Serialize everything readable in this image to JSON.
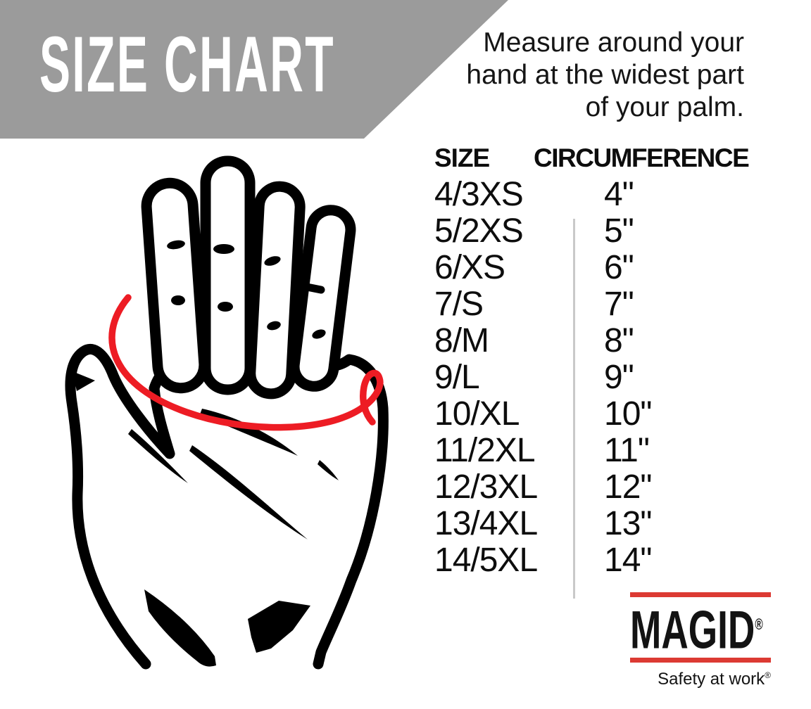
{
  "banner": {
    "title": "SIZE CHART",
    "bg_color": "#9b9b9b",
    "text_color": "#ffffff"
  },
  "instruction": {
    "lines": [
      "Measure around your",
      "hand at the widest part",
      "of your palm."
    ]
  },
  "size_table": {
    "headers": {
      "size": "SIZE",
      "circumference": "CIRCUMFERENCE"
    },
    "rows": [
      {
        "size": "4/3XS",
        "circumference": "4\""
      },
      {
        "size": "5/2XS",
        "circumference": "5\""
      },
      {
        "size": "6/XS",
        "circumference": "6\""
      },
      {
        "size": "7/S",
        "circumference": "7\""
      },
      {
        "size": "8/M",
        "circumference": "8\""
      },
      {
        "size": "9/L",
        "circumference": "9\""
      },
      {
        "size": "10/XL",
        "circumference": "10\""
      },
      {
        "size": "11/2XL",
        "circumference": "11\""
      },
      {
        "size": "12/3XL",
        "circumference": "12\""
      },
      {
        "size": "13/4XL",
        "circumference": "13\""
      },
      {
        "size": "14/5XL",
        "circumference": "14\""
      }
    ],
    "divider_color": "#c9c9c9"
  },
  "hand_diagram": {
    "description": "outlined open hand with red measuring line around widest part of palm",
    "ink_color": "#000000",
    "measuring_line_color": "#ed1c24"
  },
  "logo": {
    "brand": "MAGID",
    "brand_registered": "®",
    "tagline": "Safety at work",
    "tagline_registered": "®",
    "bar_color": "#dc3a33"
  }
}
